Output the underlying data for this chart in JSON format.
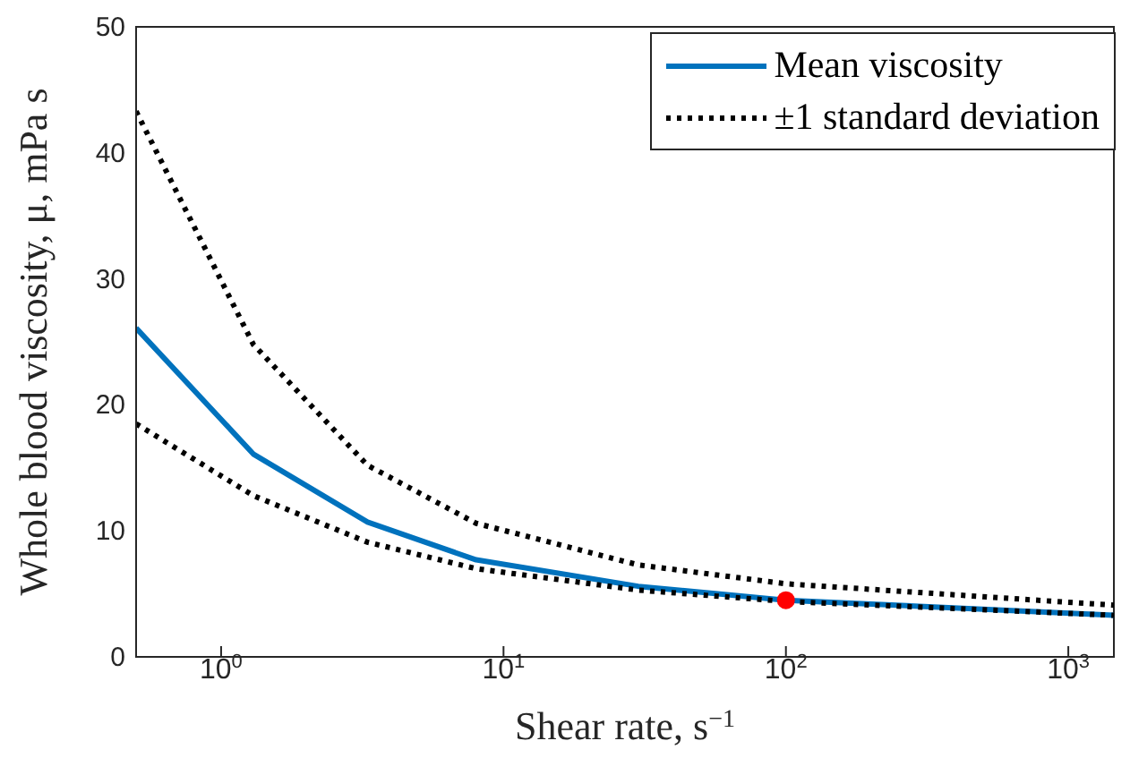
{
  "chart_data": {
    "type": "line",
    "xlabel": "Shear rate, s$^{−1}$",
    "ylabel": "Whole blood viscosity, μ, mPa s",
    "log": "x",
    "grid": false,
    "legend": "top right",
    "marker": "none",
    "xlim": [
      0.5,
      1450
    ],
    "xticks": [
      {
        "value": 1,
        "label": "10$^{0}$"
      },
      {
        "value": 10,
        "label": "10$^{1}$"
      },
      {
        "value": 100,
        "label": "10$^{2}$"
      },
      {
        "value": 1000,
        "label": "10$^{3}$"
      }
    ],
    "ylim": [
      0,
      50
    ],
    "yticks": [
      0,
      10,
      20,
      30,
      40,
      50
    ],
    "series": [
      {
        "name": "Mean viscosity",
        "color": "#0072bd",
        "line_style": "solid",
        "x": [
          0.5,
          1.3,
          3.3,
          8,
          30,
          100,
          1450
        ],
        "values": [
          26.1,
          16.1,
          10.7,
          7.7,
          5.6,
          4.5,
          3.3
        ]
      },
      {
        "name": "±1 standard deviation",
        "color": "#000000",
        "line_style": "dotted",
        "x": [
          0.5,
          1.3,
          3.3,
          8,
          30,
          100,
          1450
        ],
        "values": [
          43.3,
          24.8,
          15.2,
          10.6,
          7.3,
          5.8,
          4.1
        ]
      },
      {
        "color": "#000000",
        "line_style": "dotted",
        "x": [
          0.5,
          1.3,
          3.3,
          8,
          30,
          100,
          1450
        ],
        "values": [
          18.5,
          12.8,
          9.1,
          7.0,
          5.3,
          4.4,
          3.3
        ]
      },
      {
        "type": "scatter",
        "color": "#ff0000",
        "marker": "circle",
        "x": [
          100
        ],
        "values": [
          4.5
        ]
      }
    ]
  }
}
